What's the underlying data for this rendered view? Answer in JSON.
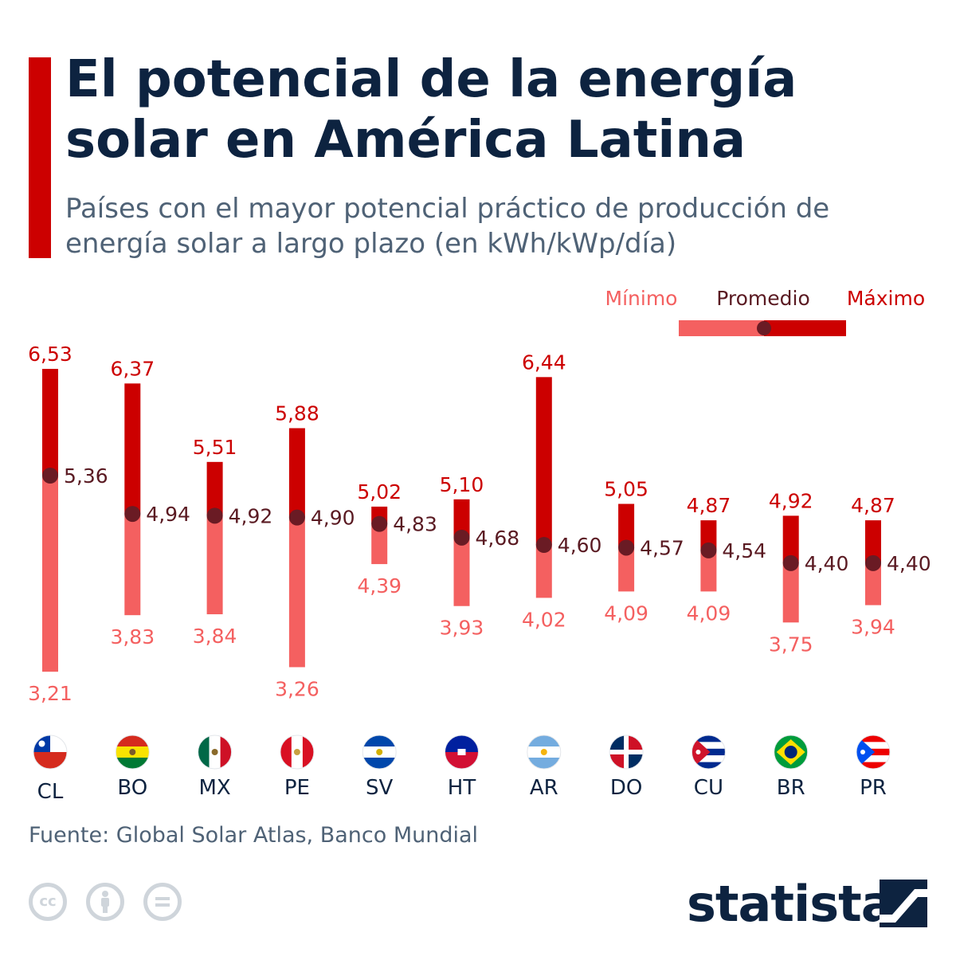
{
  "header": {
    "title": "El potencial de la energía solar en América Latina",
    "subtitle": "Países con el mayor potencial práctico de producción de energía solar a largo plazo (en kWh/kWp/día)"
  },
  "legend": {
    "min_label": "Mínimo",
    "avg_label": "Promedio",
    "max_label": "Máximo"
  },
  "colors": {
    "min": "#f46060",
    "max": "#cc0000",
    "avg_dot": "#6a1b24",
    "avg_text": "#5a1a22",
    "title": "#0d2340",
    "muted": "#4f6276"
  },
  "chart_data": {
    "type": "range",
    "categories": [
      "CL",
      "BO",
      "MX",
      "PE",
      "SV",
      "HT",
      "AR",
      "DO",
      "CU",
      "BR",
      "PR"
    ],
    "min": [
      3.21,
      3.83,
      3.84,
      3.26,
      4.39,
      3.93,
      4.02,
      4.09,
      4.09,
      3.75,
      3.94
    ],
    "avg": [
      5.36,
      4.94,
      4.92,
      4.9,
      4.83,
      4.68,
      4.6,
      4.57,
      4.54,
      4.4,
      4.4
    ],
    "max": [
      6.53,
      6.37,
      5.51,
      5.88,
      5.02,
      5.1,
      6.44,
      5.05,
      4.87,
      4.92,
      4.87
    ],
    "min_labels": [
      "3,21",
      "3,83",
      "3,84",
      "3,26",
      "4,39",
      "3,93",
      "4,02",
      "4,09",
      "4,09",
      "3,75",
      "3,94"
    ],
    "avg_labels": [
      "5,36",
      "4,94",
      "4,92",
      "4,90",
      "4,83",
      "4,68",
      "4,60",
      "4,57",
      "4,54",
      "4,40",
      "4,40"
    ],
    "max_labels": [
      "6,53",
      "6,37",
      "5,51",
      "5,88",
      "5,02",
      "5,10",
      "6,44",
      "5,05",
      "4,87",
      "4,92",
      "4,87"
    ],
    "flag_icons": [
      "chile-flag-icon",
      "bolivia-flag-icon",
      "mexico-flag-icon",
      "peru-flag-icon",
      "el-salvador-flag-icon",
      "haiti-flag-icon",
      "argentina-flag-icon",
      "dominican-republic-flag-icon",
      "cuba-flag-icon",
      "brazil-flag-icon",
      "puerto-rico-flag-icon"
    ]
  },
  "footer": {
    "source": "Fuente: Global Solar Atlas, Banco Mundial",
    "logo_text": "statista",
    "license_icons": [
      "cc-icon",
      "attribution-icon",
      "no-derivatives-icon"
    ]
  }
}
